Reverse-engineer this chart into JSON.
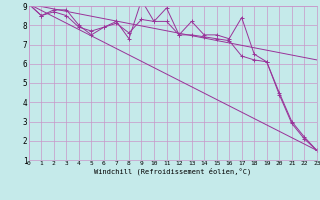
{
  "bg_color": "#c5eaea",
  "grid_color": "#c896c8",
  "line_color": "#993399",
  "xlim": [
    0,
    23
  ],
  "ylim": [
    1,
    9
  ],
  "xticks": [
    0,
    1,
    2,
    3,
    4,
    5,
    6,
    7,
    8,
    9,
    10,
    11,
    12,
    13,
    14,
    15,
    16,
    17,
    18,
    19,
    20,
    21,
    22,
    23
  ],
  "yticks": [
    1,
    2,
    3,
    4,
    5,
    6,
    7,
    8,
    9
  ],
  "xlabel": "Windchill (Refroidissement éolien,°C)",
  "series1_x": [
    0,
    1,
    2,
    3,
    4,
    5,
    6,
    7,
    8,
    9,
    10,
    11,
    12,
    13,
    14,
    15,
    16,
    17,
    18,
    19,
    20,
    21,
    22,
    23
  ],
  "series1_y": [
    9.1,
    8.5,
    8.8,
    8.8,
    8.0,
    7.5,
    7.9,
    8.2,
    7.3,
    9.3,
    8.2,
    8.9,
    7.5,
    8.2,
    7.5,
    7.5,
    7.3,
    8.4,
    6.5,
    6.1,
    4.5,
    3.0,
    2.2,
    1.5
  ],
  "series2_x": [
    0,
    1,
    2,
    3,
    4,
    5,
    6,
    7,
    8,
    9,
    10,
    11,
    12,
    13,
    14,
    15,
    16,
    17,
    18,
    19,
    20,
    21,
    22,
    23
  ],
  "series2_y": [
    9.1,
    8.5,
    8.7,
    8.5,
    7.9,
    7.7,
    7.9,
    8.1,
    7.6,
    8.3,
    8.2,
    8.2,
    7.5,
    7.5,
    7.4,
    7.3,
    7.2,
    6.4,
    6.2,
    6.1,
    4.4,
    2.9,
    2.1,
    1.5
  ],
  "series3_x": [
    0,
    23
  ],
  "series3_y": [
    9.1,
    6.2
  ],
  "series4_x": [
    0,
    23
  ],
  "series4_y": [
    9.1,
    1.5
  ]
}
